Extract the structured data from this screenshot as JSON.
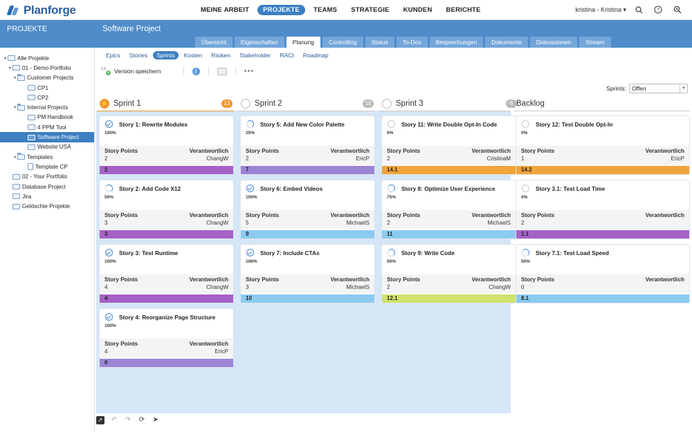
{
  "app": {
    "brand": "Planforge",
    "nav": [
      "MEINE ARBEIT",
      "PROJEKTE",
      "TEAMS",
      "STRATEGIE",
      "KUNDEN",
      "BERICHTE"
    ],
    "active_nav_index": 1,
    "user": "kristina - Kristina ▾",
    "icons": [
      "search-icon",
      "help-icon",
      "admin-search-icon"
    ]
  },
  "sidebar": {
    "title": "PROJEKTE",
    "items": [
      {
        "label": "Alle Projekte",
        "icon": "portfolio-icon"
      },
      {
        "label": "01 - Demo Portfolio",
        "icon": "portfolio-icon"
      },
      {
        "label": "Customer Projects",
        "icon": "folder-icon"
      },
      {
        "label": "CP1",
        "icon": "project-icon"
      },
      {
        "label": "CP2",
        "icon": "project-icon"
      },
      {
        "label": "Internal Projects",
        "icon": "folder-icon"
      },
      {
        "label": "PM Handbook",
        "icon": "project-icon"
      },
      {
        "label": "4 PPM Tool",
        "icon": "project-icon"
      },
      {
        "label": "Software Project",
        "icon": "project-icon",
        "selected": true
      },
      {
        "label": "Website USA",
        "icon": "project-icon"
      },
      {
        "label": "Templates",
        "icon": "folder-icon"
      },
      {
        "label": "Template CP",
        "icon": "template-icon"
      },
      {
        "label": "02 - Your Portfolio",
        "icon": "portfolio-icon"
      },
      {
        "label": "Database Project",
        "icon": "project-icon"
      },
      {
        "label": "Jira",
        "icon": "project-icon"
      },
      {
        "label": "Gelöschte Projekte",
        "icon": "trash-icon"
      }
    ]
  },
  "project": {
    "title": "Software Project",
    "tabs": [
      "Übersicht",
      "Eigenschaften",
      "Planung",
      "Controlling",
      "Status",
      "To-Dos",
      "Besprechungen",
      "Dokumente",
      "Diskussionen",
      "Stream"
    ],
    "active_tab_index": 2,
    "subtabs": [
      "Epics",
      "Stories",
      "Sprints",
      "Kosten",
      "Risiken",
      "Stakeholder",
      "RACI",
      "Roadmap"
    ],
    "active_subtab_index": 2
  },
  "toolbar": {
    "save_version": "Version speichern"
  },
  "filter": {
    "label": "Sprints:",
    "value": "Offen"
  },
  "labels": {
    "story_points": "Story Points",
    "owner": "Verantwortlich"
  },
  "columns": [
    {
      "title": "Sprint 1",
      "count": "13",
      "active": true,
      "cards": [
        {
          "name": "Story 1: Rewrite Modules",
          "pct": "100%",
          "points": "2",
          "owner": "ChangW",
          "tag": "2",
          "color": "#a561c6"
        },
        {
          "name": "Story 2: Add Code X12",
          "pct": "50%",
          "points": "3",
          "owner": "ChangW",
          "tag": "3",
          "color": "#a561c6"
        },
        {
          "name": "Story 3: Test Runtime",
          "pct": "100%",
          "points": "4",
          "owner": "ChangW",
          "tag": "4",
          "color": "#a561c6"
        },
        {
          "name": "Story 4: Reorganize Page Structure",
          "pct": "100%",
          "points": "4",
          "owner": "EricP",
          "tag": "6",
          "color": "#9d85d6"
        }
      ]
    },
    {
      "title": "Sprint 2",
      "count": "10",
      "active": false,
      "cards": [
        {
          "name": "Story 5: Add New Color Palette",
          "pct": "25%",
          "points": "2",
          "owner": "EricP",
          "tag": "7",
          "color": "#9d85d6"
        },
        {
          "name": "Story 6: Embed Videos",
          "pct": "100%",
          "points": "5",
          "owner": "MichaelS",
          "tag": "9",
          "color": "#8ccaf0"
        },
        {
          "name": "Story 7: Include CTAs",
          "pct": "100%",
          "points": "3",
          "owner": "MichaelS",
          "tag": "10",
          "color": "#8ccaf0"
        }
      ]
    },
    {
      "title": "Sprint 3",
      "count": "6",
      "active": false,
      "cards": [
        {
          "name": "Story 11: Write Double Opt-In Code",
          "pct": "0%",
          "points": "2",
          "owner": "CristinaM",
          "tag": "14.1",
          "color": "#f0a43a"
        },
        {
          "name": "Story 8: Optimize User Experience",
          "pct": "75%",
          "points": "2",
          "owner": "MichaelS",
          "tag": "11",
          "color": "#8ccaf0"
        },
        {
          "name": "Story 9: Write Code",
          "pct": "50%",
          "points": "2",
          "owner": "ChangW",
          "tag": "12.1",
          "color": "#cfe26b"
        }
      ]
    }
  ],
  "backlog": {
    "title": "Backlog",
    "cards": [
      {
        "name": "Story 12: Test Double Opt-In",
        "pct": "0%",
        "points": "1",
        "owner": "EricP",
        "tag": "14.2",
        "color": "#f0a43a"
      },
      {
        "name": "Story 3.1: Test Load Time",
        "pct": "0%",
        "points": "2",
        "owner": "",
        "tag": "1.1",
        "color": "#a561c6"
      },
      {
        "name": "Story 7.1: Test Load Speed",
        "pct": "50%",
        "points": "0",
        "owner": "",
        "tag": "8.1",
        "color": "#8ccaf0"
      }
    ]
  }
}
